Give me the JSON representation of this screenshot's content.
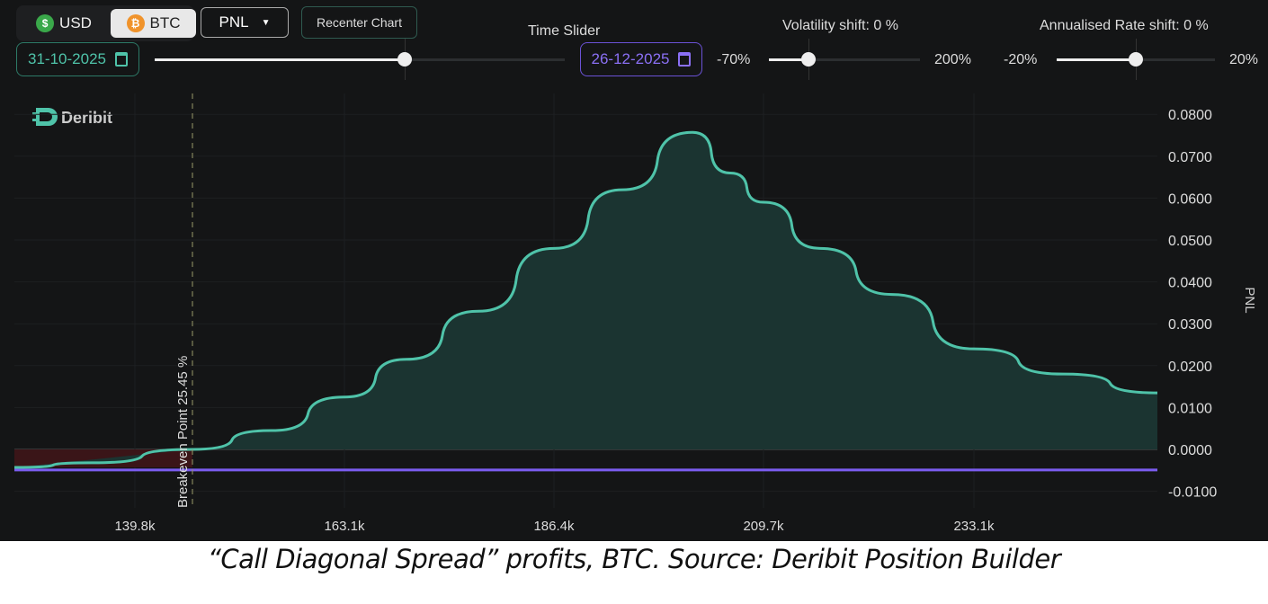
{
  "toolbar": {
    "usd_label": "USD",
    "btc_label": "BTC",
    "selected_currency": "BTC",
    "metric_select": "PNL",
    "recenter_label": "Recenter Chart",
    "start_date": "31-10-2025",
    "time_slider_label": "Time Slider",
    "end_date": "26-12-2025",
    "time_slider_position_pct": 61,
    "volatility": {
      "label": "Volatility shift: 0 %",
      "min": "-70%",
      "max": "200%",
      "value_pct": 0
    },
    "rate": {
      "label": "Annualised Rate shift: 0 %",
      "min": "-20%",
      "max": "20%",
      "value_pct": 0
    }
  },
  "logo": "Deribit",
  "colors": {
    "accent": "#4fc3a9",
    "purple": "#7b5cf0",
    "loss": "#3a1518",
    "profit_fill": "#1b3431",
    "background": "#141516"
  },
  "chart_data": {
    "type": "area",
    "ylabel": "PNL",
    "xlim": [
      126.4,
      253.5
    ],
    "ylim": [
      -0.0135,
      0.085
    ],
    "x_ticks": [
      "139.8k",
      "163.1k",
      "186.4k",
      "209.7k",
      "233.1k"
    ],
    "x_tick_values": [
      139.8,
      163.1,
      186.4,
      209.7,
      233.1
    ],
    "y_ticks": [
      "0.0800",
      "0.0700",
      "0.0600",
      "0.0500",
      "0.0400",
      "0.0300",
      "0.0200",
      "0.0100",
      "0.0000",
      "-0.0100"
    ],
    "y_tick_values": [
      0.08,
      0.07,
      0.06,
      0.05,
      0.04,
      0.03,
      0.02,
      0.01,
      0,
      -0.01
    ],
    "series": [
      {
        "x": [
          126.4,
          135,
          146.2,
          155,
          163.1,
          170,
          178,
          186.4,
          194,
          201.8,
          206,
          209.7,
          216,
          224,
          233.1,
          243,
          253.5
        ],
        "y": [
          -0.0043,
          -0.0032,
          0,
          0.0045,
          0.0125,
          0.0215,
          0.033,
          0.048,
          0.062,
          0.0757,
          0.066,
          0.059,
          0.048,
          0.037,
          0.024,
          0.018,
          0.0135
        ]
      }
    ],
    "max_loss_line": -0.0049,
    "breakeven": {
      "x": 146.2,
      "label": "Breakeven Point 25.45 %"
    },
    "grid": true
  },
  "caption": "“Call Diagonal Spread” profits, BTC. Source: Deribit Position Builder"
}
